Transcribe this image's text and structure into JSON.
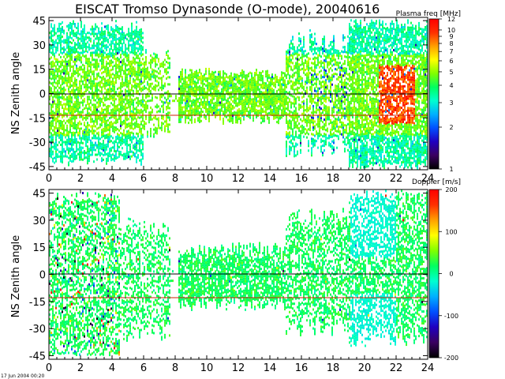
{
  "figure": {
    "title": "EISCAT Tromso Dynasonde (O-mode),  20040616",
    "timestamp": "17 Jun 2004 00:20"
  },
  "chart_data": [
    {
      "type": "heatmap",
      "panel": "top",
      "ylabel": "NS Zenith angle",
      "xlabel": "",
      "xlim": [
        0,
        24
      ],
      "ylim": [
        -47,
        47
      ],
      "xticks": [
        "0",
        "2",
        "4",
        "6",
        "8",
        "10",
        "12",
        "14",
        "16",
        "18",
        "20",
        "22",
        "24"
      ],
      "yticks": [
        "45",
        "30",
        "15",
        "0",
        "-15",
        "-30",
        "-45"
      ],
      "reference_lines": [
        0,
        -10
      ],
      "colorbar": {
        "label": "Plasma freq [MHz]",
        "scale": "log",
        "range": [
          1,
          12
        ],
        "ticks": [
          "12",
          "10",
          "9",
          "8",
          "7",
          "6",
          "5",
          "4",
          "3",
          "2",
          "1"
        ],
        "colors": [
          "#000000",
          "#3a0060",
          "#2000c0",
          "#0050ff",
          "#00b0ff",
          "#00ffd0",
          "#00ff60",
          "#80ff00",
          "#ffff00",
          "#ffa000",
          "#ff3000",
          "#ff0000"
        ]
      },
      "grid": false,
      "dominant_color": "green (~3-4 MHz)",
      "notes": "enhanced orange/red returns near 21-23 UT around 0 deg"
    },
    {
      "type": "heatmap",
      "panel": "bottom",
      "ylabel": "NS Zenith angle",
      "xlabel": "",
      "xlim": [
        0,
        24
      ],
      "ylim": [
        -47,
        47
      ],
      "xticks": [
        "0",
        "2",
        "4",
        "6",
        "8",
        "10",
        "12",
        "14",
        "16",
        "18",
        "20",
        "22",
        "24"
      ],
      "yticks": [
        "45",
        "30",
        "15",
        "0",
        "-15",
        "-30",
        "-45"
      ],
      "reference_lines": [
        0,
        -10
      ],
      "colorbar": {
        "label": "Doppler [m/s]",
        "scale": "linear",
        "range": [
          -200,
          200
        ],
        "ticks": [
          "200",
          "100",
          "0",
          "-100",
          "-200"
        ],
        "colors": [
          "#000000",
          "#3a0060",
          "#2000c0",
          "#0050ff",
          "#00b0ff",
          "#00ffd0",
          "#00ff60",
          "#80ff00",
          "#ffff00",
          "#ffa000",
          "#ff3000",
          "#ff0000"
        ]
      },
      "grid": false,
      "dominant_color": "green (~0 m/s)",
      "notes": "scattered red/blue returns in 0-4 UT, cyan returns after 19 UT"
    }
  ]
}
